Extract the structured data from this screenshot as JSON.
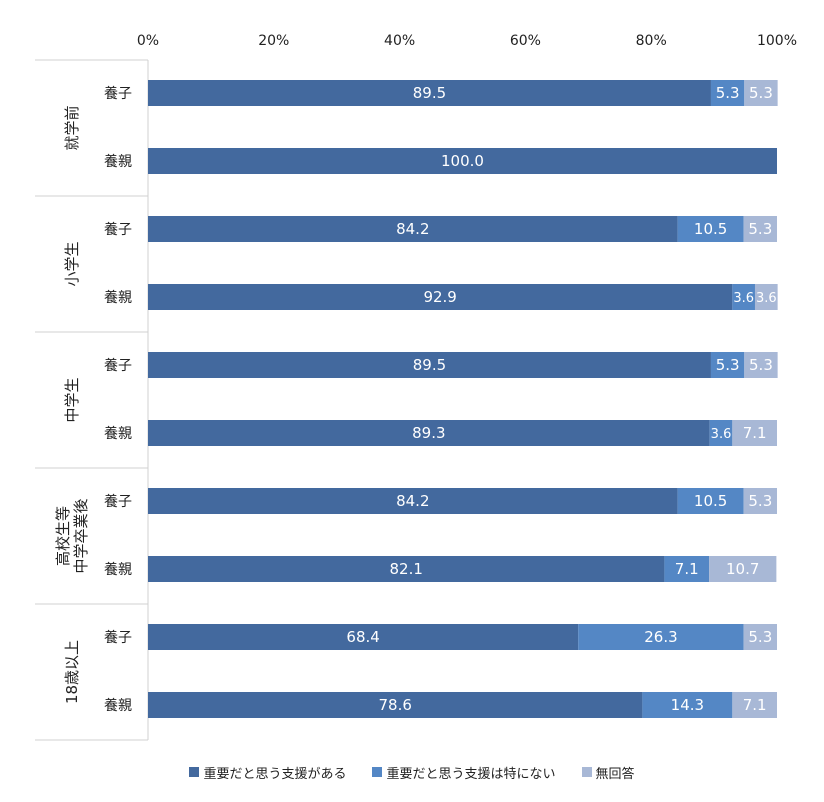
{
  "chart_data": {
    "type": "bar",
    "orientation": "horizontal",
    "stacked": "percent",
    "xlim": [
      0,
      100
    ],
    "x_ticks": [
      "0%",
      "20%",
      "40%",
      "60%",
      "80%",
      "100%"
    ],
    "grid": false,
    "legend_position": "bottom",
    "groups": [
      "就学前",
      "小学生",
      "中学生",
      "高校生等\n中学卒業後",
      "18歳以上"
    ],
    "categories": [
      "養子",
      "養親",
      "養子",
      "養親",
      "養子",
      "養親",
      "養子",
      "養親",
      "養子",
      "養親"
    ],
    "category_group": [
      0,
      0,
      1,
      1,
      2,
      2,
      3,
      3,
      4,
      4
    ],
    "series": [
      {
        "name": "重要だと思う支援がある",
        "color": "#43699e",
        "values": [
          89.5,
          100.0,
          84.2,
          92.9,
          89.5,
          89.3,
          84.2,
          82.1,
          68.4,
          78.6
        ],
        "labels": [
          "89.5",
          "100.0",
          "84.2",
          "92.9",
          "89.5",
          "89.3",
          "84.2",
          "82.1",
          "68.4",
          "78.6"
        ]
      },
      {
        "name": "重要だと思う支援は特にない",
        "color": "#5487c5",
        "values": [
          5.3,
          0,
          10.5,
          3.6,
          5.3,
          3.6,
          10.5,
          7.1,
          26.3,
          14.3
        ],
        "labels": [
          "5.3",
          "",
          "10.5",
          "3.6",
          "5.3",
          "3.6",
          "10.5",
          "7.1",
          "26.3",
          "14.3"
        ]
      },
      {
        "name": "無回答",
        "color": "#a8b8d6",
        "values": [
          5.3,
          0,
          5.3,
          3.6,
          5.3,
          7.1,
          5.3,
          10.7,
          5.3,
          7.1
        ],
        "labels": [
          "5.3",
          "",
          "5.3",
          "3.6",
          "5.3",
          "7.1",
          "5.3",
          "10.7",
          "5.3",
          "7.1"
        ]
      }
    ]
  }
}
